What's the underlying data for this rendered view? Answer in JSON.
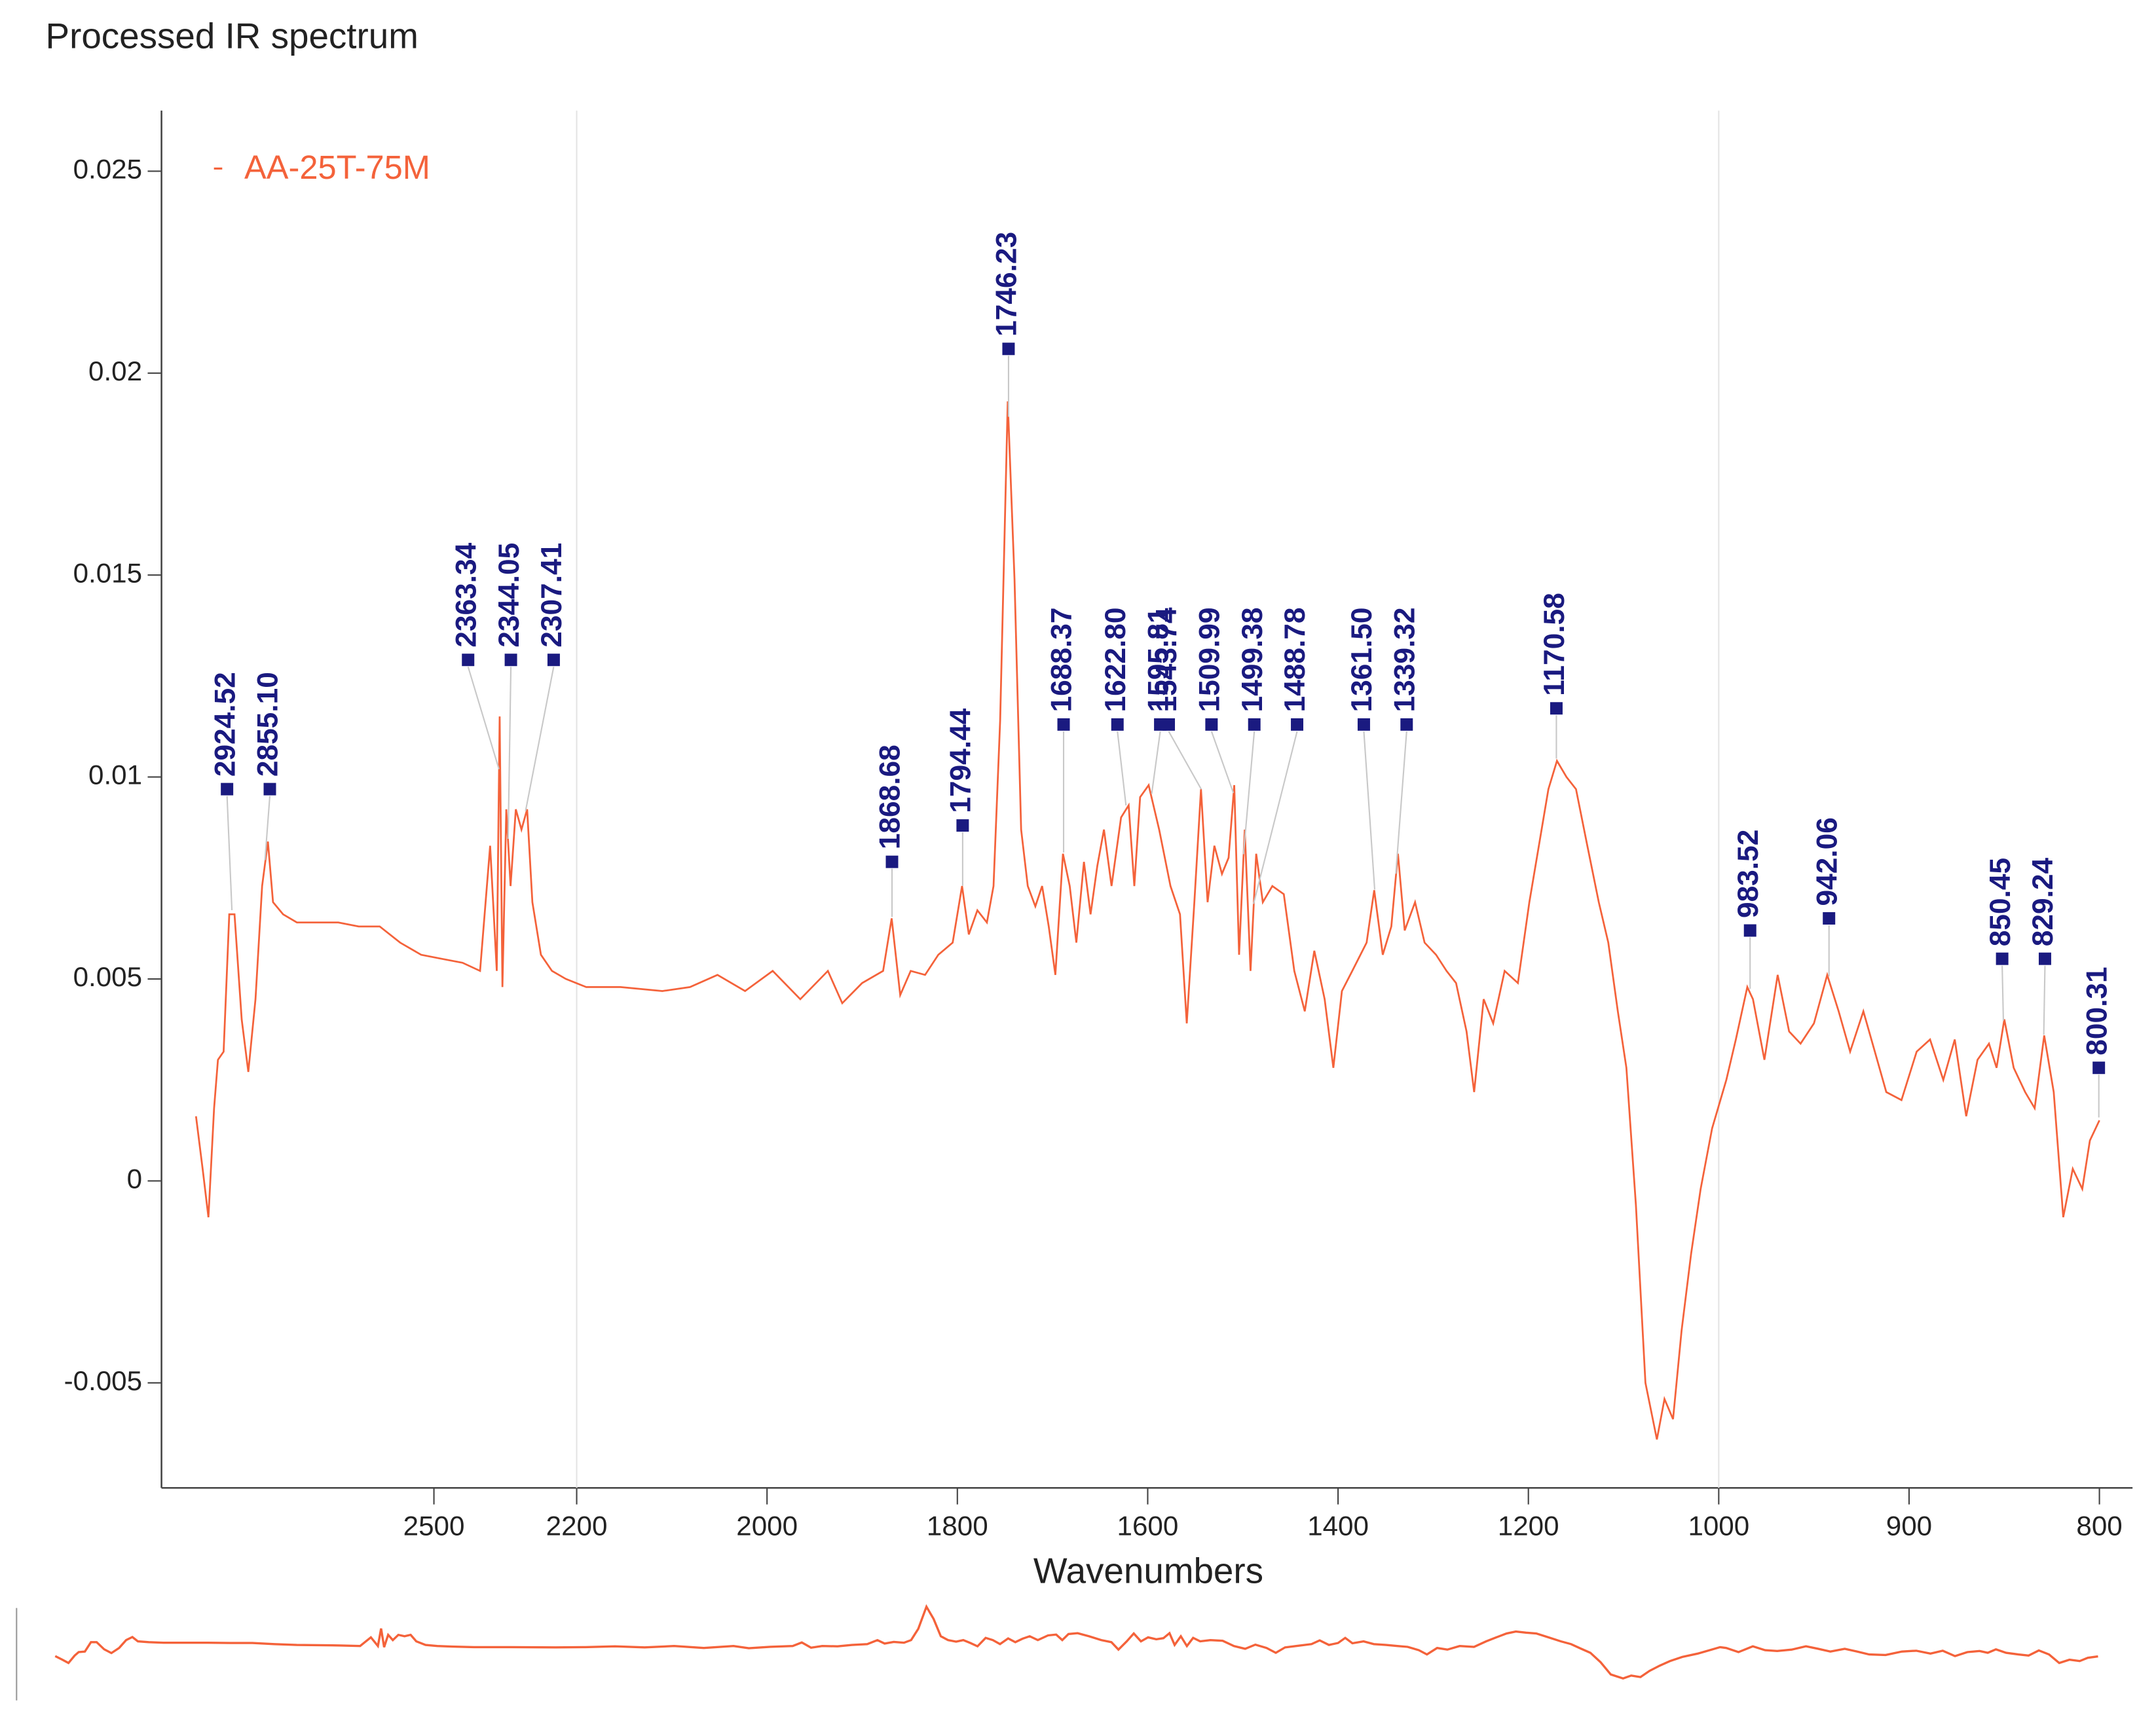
{
  "chart_data": {
    "type": "line",
    "title": "Processed IR spectrum",
    "x_label": "Wavenumbers",
    "xlim": [
      3000,
      800
    ],
    "x_breaks": [
      2200,
      1000
    ],
    "xticks": [
      2500,
      2200,
      2000,
      1800,
      1600,
      1400,
      1200,
      1000,
      900,
      800
    ],
    "ylim": [
      -0.0076,
      0.0265
    ],
    "yticks": [
      -0.005,
      0,
      0.005,
      0.01,
      0.015,
      0.02,
      0.025
    ],
    "grid": true,
    "legend": "top-left",
    "x": [
      3000,
      2986,
      2974,
      2962,
      2954,
      2942,
      2930,
      2919,
      2904,
      2890,
      2875,
      2861,
      2849,
      2838,
      2817,
      2788,
      2745,
      2701,
      2658,
      2614,
      2571,
      2527,
      2484,
      2440,
      2403,
      2382,
      2368,
      2362,
      2356,
      2348,
      2339,
      2328,
      2316,
      2304,
      2293,
      2275,
      2252,
      2223,
      2190,
      2154,
      2110,
      2081,
      2052,
      2023,
      1994,
      1965,
      1936,
      1921,
      1900,
      1878,
      1869,
      1860,
      1849,
      1834,
      1820,
      1805,
      1795,
      1788,
      1779,
      1769,
      1762,
      1755,
      1747,
      1740,
      1733,
      1726,
      1718,
      1711,
      1704,
      1697,
      1689,
      1682,
      1675,
      1667,
      1660,
      1653,
      1646,
      1638,
      1628,
      1620,
      1614,
      1608,
      1599,
      1588,
      1576,
      1566,
      1559,
      1551,
      1544,
      1537,
      1530,
      1522,
      1515,
      1509,
      1504,
      1498,
      1492,
      1486,
      1479,
      1469,
      1457,
      1446,
      1435,
      1425,
      1414,
      1405,
      1396,
      1385,
      1370,
      1362,
      1353,
      1344,
      1337,
      1330,
      1319,
      1309,
      1297,
      1286,
      1276,
      1265,
      1257,
      1247,
      1237,
      1225,
      1211,
      1199,
      1189,
      1179,
      1170,
      1160,
      1150,
      1138,
      1126,
      1116,
      1106,
      1097,
      1087,
      1077,
      1065,
      1057,
      1048,
      1039,
      1029,
      1019,
      1007,
      996,
      991,
      985,
      982,
      976,
      969,
      963,
      957,
      950,
      943,
      937,
      931,
      924,
      918,
      912,
      904,
      896,
      889,
      882,
      876,
      870,
      864,
      858,
      854,
      850,
      845,
      839,
      834,
      829,
      824,
      819,
      814,
      809,
      805,
      800
    ],
    "series": [
      {
        "name": "AA-25T-75M",
        "color": "#f4623a",
        "values": [
          0.0016,
          0.0003,
          -0.0009,
          0.0018,
          0.003,
          0.0032,
          0.0066,
          0.0066,
          0.004,
          0.0027,
          0.0045,
          0.0073,
          0.0084,
          0.0069,
          0.0066,
          0.0064,
          0.0064,
          0.0064,
          0.0063,
          0.0063,
          0.0059,
          0.0056,
          0.0055,
          0.0054,
          0.0052,
          0.0083,
          0.0052,
          0.0115,
          0.0048,
          0.0092,
          0.0073,
          0.0092,
          0.0087,
          0.0092,
          0.0069,
          0.0056,
          0.0052,
          0.005,
          0.0048,
          0.0048,
          0.0047,
          0.0048,
          0.0051,
          0.0047,
          0.0052,
          0.0045,
          0.0052,
          0.0044,
          0.0049,
          0.0052,
          0.0065,
          0.0046,
          0.0052,
          0.0051,
          0.0056,
          0.0059,
          0.0073,
          0.0061,
          0.0067,
          0.0064,
          0.0073,
          0.0114,
          0.0193,
          0.0149,
          0.0087,
          0.0073,
          0.0068,
          0.0073,
          0.0063,
          0.0051,
          0.0081,
          0.0073,
          0.0059,
          0.0079,
          0.0066,
          0.0078,
          0.0087,
          0.0073,
          0.009,
          0.0093,
          0.0073,
          0.0095,
          0.0098,
          0.0087,
          0.0073,
          0.0066,
          0.0039,
          0.0069,
          0.0097,
          0.0069,
          0.0083,
          0.0076,
          0.008,
          0.0098,
          0.0056,
          0.0087,
          0.0052,
          0.0081,
          0.0069,
          0.0073,
          0.0071,
          0.0052,
          0.0042,
          0.0057,
          0.0045,
          0.0028,
          0.0047,
          0.0052,
          0.0059,
          0.0072,
          0.0056,
          0.0063,
          0.0081,
          0.0062,
          0.0069,
          0.0059,
          0.0056,
          0.0052,
          0.0049,
          0.0037,
          0.0022,
          0.0045,
          0.0039,
          0.0052,
          0.0049,
          0.0069,
          0.0083,
          0.0097,
          0.0104,
          0.01,
          0.0097,
          0.0083,
          0.0069,
          0.0059,
          0.0042,
          0.0028,
          -0.0006,
          -0.005,
          -0.0064,
          -0.0054,
          -0.0059,
          -0.0037,
          -0.0018,
          -0.0002,
          0.0013,
          0.0025,
          0.0035,
          0.0048,
          0.0045,
          0.003,
          0.0051,
          0.0037,
          0.0034,
          0.0039,
          0.0051,
          0.0042,
          0.0032,
          0.0042,
          0.0032,
          0.0022,
          0.002,
          0.0032,
          0.0035,
          0.0025,
          0.0035,
          0.0016,
          0.003,
          0.0034,
          0.0028,
          0.004,
          0.0028,
          0.0022,
          0.0018,
          0.0036,
          0.0022,
          -0.0009,
          0.0003,
          -0.0002,
          0.001,
          0.0015
        ]
      }
    ],
    "peak_color": "#1a1a80",
    "peaks": [
      {
        "value": 2924.52,
        "label": "2924.52",
        "marker_y": 0.0097
      },
      {
        "value": 2855.1,
        "label": "2855.10",
        "marker_y": 0.0097
      },
      {
        "value": 2363.34,
        "label": "2363.34",
        "marker_y": 0.0129
      },
      {
        "value": 2344.05,
        "label": "2344.05",
        "marker_y": 0.0129
      },
      {
        "value": 2307.41,
        "label": "2307.41",
        "marker_y": 0.0129
      },
      {
        "value": 1868.68,
        "label": "1868.68",
        "marker_y": 0.0079
      },
      {
        "value": 1794.44,
        "label": "1794.44",
        "marker_y": 0.0088
      },
      {
        "value": 1746.23,
        "label": "1746.23",
        "marker_y": 0.0206
      },
      {
        "value": 1688.37,
        "label": "1688.37",
        "marker_y": 0.0113
      },
      {
        "value": 1622.8,
        "label": "1622.80",
        "marker_y": 0.0113
      },
      {
        "value": 1595.81,
        "label": "1595.81",
        "marker_y": 0.0113
      },
      {
        "value": 1543.74,
        "label": "1543.74",
        "marker_y": 0.0113
      },
      {
        "value": 1509.99,
        "label": "1509.99",
        "marker_y": 0.0113
      },
      {
        "value": 1499.38,
        "label": "1499.38",
        "marker_y": 0.0113
      },
      {
        "value": 1488.78,
        "label": "1488.78",
        "marker_y": 0.0113
      },
      {
        "value": 1361.5,
        "label": "1361.50",
        "marker_y": 0.0113
      },
      {
        "value": 1339.32,
        "label": "1339.32",
        "marker_y": 0.0113
      },
      {
        "value": 1170.58,
        "label": "1170.58",
        "marker_y": 0.0117
      },
      {
        "value": 983.52,
        "label": "983.52",
        "marker_y": 0.0062
      },
      {
        "value": 942.06,
        "label": "942.06",
        "marker_y": 0.0065
      },
      {
        "value": 850.45,
        "label": "850.45",
        "marker_y": 0.0055
      },
      {
        "value": 829.24,
        "label": "829.24",
        "marker_y": 0.0055
      },
      {
        "value": 800.31,
        "label": "800.31",
        "marker_y": 0.0028
      }
    ]
  }
}
